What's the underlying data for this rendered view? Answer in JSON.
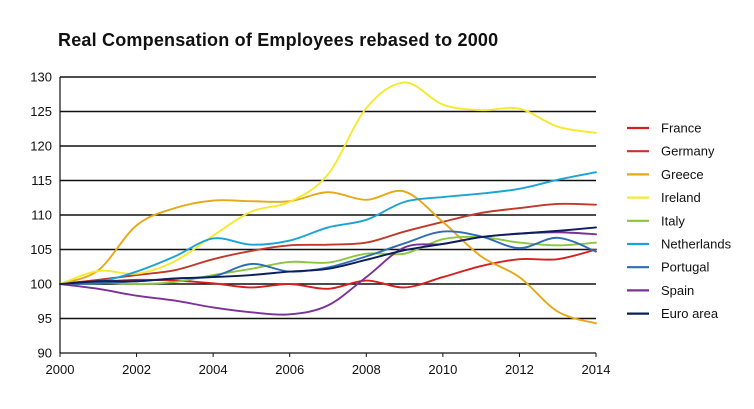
{
  "chart_data": {
    "type": "line",
    "title": "Real Compensation of Employees rebased to 2000",
    "xlabel": "",
    "ylabel": "",
    "xlim": [
      2000,
      2014
    ],
    "ylim": [
      90,
      130
    ],
    "xticks": [
      2000,
      2002,
      2004,
      2006,
      2008,
      2010,
      2012,
      2014
    ],
    "yticks": [
      90,
      95,
      100,
      105,
      110,
      115,
      120,
      125,
      130
    ],
    "grid": "horizontal",
    "legend_position": "right",
    "x": [
      2000,
      2001,
      2002,
      2003,
      2004,
      2005,
      2006,
      2007,
      2008,
      2009,
      2010,
      2011,
      2012,
      2013,
      2014
    ],
    "series": [
      {
        "name": "France",
        "color": "#d42020",
        "values": [
          100,
          100.3,
          100.6,
          100.5,
          100.1,
          99.5,
          100.0,
          99.3,
          100.5,
          99.5,
          101.0,
          102.6,
          103.6,
          103.6,
          105.0
        ]
      },
      {
        "name": "Germany",
        "color": "#c0392b",
        "values": [
          100,
          100.6,
          101.3,
          102.0,
          103.6,
          104.8,
          105.6,
          105.7,
          106.0,
          107.6,
          109.0,
          110.3,
          111.0,
          111.6,
          111.5
        ]
      },
      {
        "name": "Greece",
        "color": "#e6a817",
        "values": [
          100,
          102.0,
          108.5,
          111.0,
          112.1,
          112.0,
          112.0,
          113.3,
          112.2,
          113.4,
          109.0,
          104.0,
          101.0,
          96.0,
          94.3
        ]
      },
      {
        "name": "Ireland",
        "color": "#f5ea2e",
        "values": [
          100,
          101.9,
          101.5,
          103.3,
          107.0,
          110.5,
          111.9,
          115.9,
          125.5,
          129.2,
          126.0,
          125.2,
          125.4,
          122.8,
          121.9
        ]
      },
      {
        "name": "Italy",
        "color": "#8cc63f",
        "values": [
          100,
          100.2,
          100.0,
          100.3,
          101.3,
          102.2,
          103.2,
          103.1,
          104.4,
          104.4,
          106.5,
          106.8,
          106.0,
          105.6,
          106.0
        ]
      },
      {
        "name": "Netherlands",
        "color": "#1ba3d6",
        "values": [
          100,
          100.3,
          101.8,
          104.0,
          106.6,
          105.7,
          106.3,
          108.2,
          109.3,
          111.9,
          112.6,
          113.1,
          113.8,
          115.1,
          116.2
        ]
      },
      {
        "name": "Portugal",
        "color": "#2e6db4",
        "values": [
          100,
          100.1,
          100.4,
          100.8,
          101.1,
          102.9,
          101.8,
          102.4,
          104.0,
          105.9,
          107.6,
          106.9,
          105.2,
          106.7,
          104.7
        ]
      },
      {
        "name": "Spain",
        "color": "#7b3294",
        "values": [
          100,
          99.3,
          98.3,
          97.6,
          96.6,
          95.9,
          95.6,
          96.9,
          101.0,
          105.3,
          105.8,
          106.8,
          107.3,
          107.5,
          107.2
        ]
      },
      {
        "name": "Euro area",
        "color": "#0b1f5c",
        "values": [
          100,
          100.4,
          100.4,
          100.8,
          101.0,
          101.3,
          101.8,
          102.2,
          103.5,
          104.9,
          105.8,
          106.8,
          107.3,
          107.7,
          108.2
        ]
      }
    ]
  }
}
